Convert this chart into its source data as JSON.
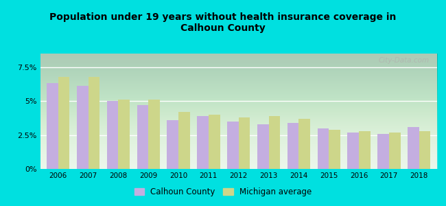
{
  "title": "Population under 19 years without health insurance coverage in\nCalhoun County",
  "years": [
    2006,
    2007,
    2008,
    2009,
    2010,
    2011,
    2012,
    2013,
    2014,
    2015,
    2016,
    2017,
    2018
  ],
  "calhoun": [
    6.3,
    6.1,
    5.0,
    4.7,
    3.6,
    3.9,
    3.5,
    3.3,
    3.4,
    3.0,
    2.7,
    2.6,
    3.1
  ],
  "michigan": [
    6.8,
    6.8,
    5.1,
    5.1,
    4.2,
    4.0,
    3.8,
    3.9,
    3.7,
    2.9,
    2.8,
    2.7,
    2.8
  ],
  "calhoun_color": "#c4aee0",
  "michigan_color": "#cdd68a",
  "background_outer": "#00e0e0",
  "background_inner_top": "#f0f8f0",
  "background_inner_bottom": "#d8f0d8",
  "yticks": [
    0.0,
    2.5,
    5.0,
    7.5
  ],
  "ytick_labels": [
    "0%",
    "2.5%",
    "5%",
    "7.5%"
  ],
  "ylim": [
    0,
    8.5
  ],
  "legend_calhoun": "Calhoun County",
  "legend_michigan": "Michigan average",
  "bar_width": 0.38
}
